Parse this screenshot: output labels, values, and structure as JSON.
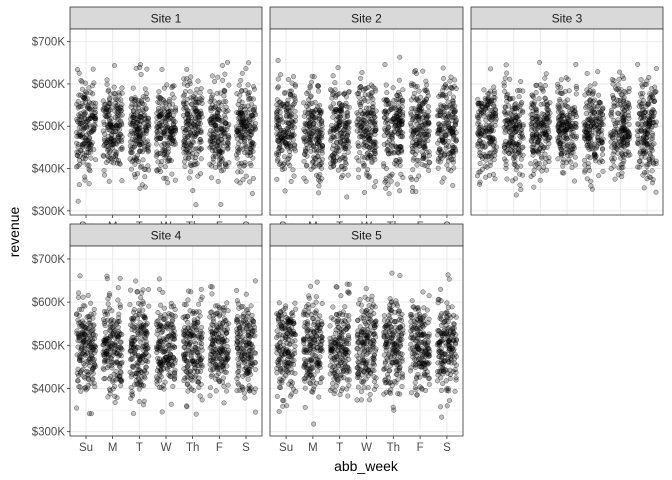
{
  "chart_data": {
    "type": "scatter",
    "style": "faceted jitter plot, semi-transparent grey points with dark outline",
    "xlabel": "abb_week",
    "ylabel": "revenue",
    "categories": [
      "Su",
      "M",
      "T",
      "W",
      "Th",
      "F",
      "S"
    ],
    "y_ticks": [
      {
        "value": 300000,
        "label": "$300K"
      },
      {
        "value": 400000,
        "label": "$400K"
      },
      {
        "value": 500000,
        "label": "$500K"
      },
      {
        "value": 600000,
        "label": "$600K"
      },
      {
        "value": 700000,
        "label": "$700K"
      }
    ],
    "ylim": [
      290000,
      730000
    ],
    "grid": true,
    "point_color": "#000000",
    "point_alpha": 0.25,
    "strip_fill": "#d9d9d9",
    "panel_border": "#333333",
    "gridline_color": "#ebebeb",
    "facets": [
      {
        "title": "Site 1",
        "n_per_day": 180,
        "y_min": 305000,
        "y_max": 680000
      },
      {
        "title": "Site 2",
        "n_per_day": 180,
        "y_min": 312000,
        "y_max": 678000
      },
      {
        "title": "Site 3",
        "n_per_day": 180,
        "y_min": 330000,
        "y_max": 692000
      },
      {
        "title": "Site 4",
        "n_per_day": 180,
        "y_min": 320000,
        "y_max": 672000
      },
      {
        "title": "Site 5",
        "n_per_day": 180,
        "y_min": 308000,
        "y_max": 672000
      }
    ]
  }
}
